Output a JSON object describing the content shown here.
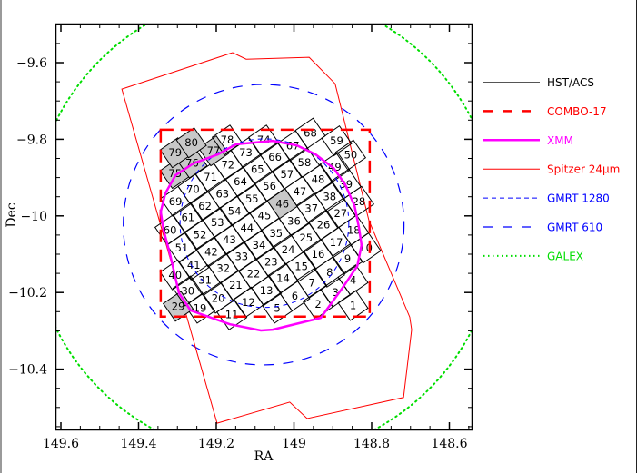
{
  "chart_data": {
    "type": "scatter",
    "title": "",
    "xlabel": "RA",
    "ylabel": "Dec",
    "xlim": [
      149.612,
      148.539
    ],
    "ylim": [
      -9.5,
      -10.558
    ],
    "grid": false,
    "legend_placement": "right-outside",
    "x_ticks": [
      149.6,
      149.4,
      149.2,
      149,
      148.8,
      148.6
    ],
    "x_tick_labels": [
      "149.6",
      "149.4",
      "149.2",
      "149",
      "148.8",
      "148.6"
    ],
    "y_ticks": [
      -9.6,
      -9.8,
      -10,
      -10.2,
      -10.4
    ],
    "y_tick_labels": [
      "−9.6",
      "−9.8",
      "−10",
      "−10.2",
      "−10.4"
    ],
    "legend": [
      {
        "label": "HST/ACS",
        "color": "#000000",
        "style": "solid"
      },
      {
        "label": "COMBO-17",
        "color": "#ff0000",
        "style": "long-dash"
      },
      {
        "label": "XMM",
        "color": "#ff00ff",
        "style": "thick-solid"
      },
      {
        "label": "Spitzer 24μm",
        "color": "#ff0000",
        "style": "solid"
      },
      {
        "label": "GMRT 1280",
        "color": "#0000ff",
        "style": "short-dash"
      },
      {
        "label": "GMRT 610",
        "color": "#0000ff",
        "style": "dash"
      },
      {
        "label": "GALEX",
        "color": "#00dd00",
        "style": "dotted"
      }
    ],
    "circles": [
      {
        "name": "GALEX",
        "center": [
          149.076,
          -10.023
        ],
        "radius_deg": 0.607
      },
      {
        "name": "GMRT 610",
        "center": [
          149.078,
          -10.023
        ],
        "radius_deg": 0.366
      },
      {
        "name": "GMRT 1280",
        "center": [
          149.076,
          -10.019
        ],
        "radius_deg": 0.22
      }
    ],
    "combo17_box": {
      "ra": [
        149.343,
        148.805
      ],
      "dec": [
        -9.775,
        -10.263
      ]
    },
    "spitzer_polygon": [
      [
        149.443,
        -9.669
      ],
      [
        149.158,
        -9.574
      ],
      [
        149.123,
        -9.591
      ],
      [
        148.961,
        -9.586
      ],
      [
        148.894,
        -9.655
      ],
      [
        148.807,
        -10.012
      ],
      [
        148.702,
        -10.264
      ],
      [
        148.697,
        -10.297
      ],
      [
        148.718,
        -10.474
      ],
      [
        148.966,
        -10.529
      ],
      [
        149.011,
        -10.486
      ],
      [
        149.198,
        -10.541
      ]
    ],
    "xmm_polygon": [
      [
        149.195,
        -9.839
      ],
      [
        149.149,
        -9.813
      ],
      [
        149.055,
        -9.804
      ],
      [
        148.992,
        -9.816
      ],
      [
        148.945,
        -9.839
      ],
      [
        148.898,
        -9.875
      ],
      [
        148.868,
        -9.918
      ],
      [
        148.844,
        -9.974
      ],
      [
        148.833,
        -10.029
      ],
      [
        148.826,
        -10.076
      ],
      [
        148.837,
        -10.131
      ],
      [
        148.875,
        -10.188
      ],
      [
        148.931,
        -10.266
      ],
      [
        149.055,
        -10.297
      ],
      [
        149.085,
        -10.299
      ],
      [
        149.165,
        -10.283
      ],
      [
        149.266,
        -10.247
      ],
      [
        149.296,
        -10.202
      ],
      [
        149.319,
        -10.1
      ],
      [
        149.336,
        -10.036
      ],
      [
        149.343,
        -9.989
      ],
      [
        149.331,
        -9.941
      ],
      [
        149.305,
        -9.894
      ],
      [
        149.259,
        -9.863
      ]
    ],
    "tile_size_deg": 0.056,
    "tiles": [
      {
        "id": 1,
        "ra": 148.848,
        "dec": -10.234
      },
      {
        "id": 2,
        "ra": 148.938,
        "dec": -10.23
      },
      {
        "id": 3,
        "ra": 148.893,
        "dec": -10.199
      },
      {
        "id": 4,
        "ra": 148.848,
        "dec": -10.167
      },
      {
        "id": 5,
        "ra": 149.043,
        "dec": -10.241
      },
      {
        "id": 6,
        "ra": 148.998,
        "dec": -10.209
      },
      {
        "id": 7,
        "ra": 148.954,
        "dec": -10.175
      },
      {
        "id": 8,
        "ra": 148.908,
        "dec": -10.147
      },
      {
        "id": 9,
        "ra": 148.862,
        "dec": -10.112
      },
      {
        "id": 10,
        "ra": 148.815,
        "dec": -10.084
      },
      {
        "id": 11,
        "ra": 149.16,
        "dec": -10.258
      },
      {
        "id": 12,
        "ra": 149.117,
        "dec": -10.225
      },
      {
        "id": 13,
        "ra": 149.071,
        "dec": -10.195
      },
      {
        "id": 14,
        "ra": 149.028,
        "dec": -10.163
      },
      {
        "id": 15,
        "ra": 148.981,
        "dec": -10.132
      },
      {
        "id": 16,
        "ra": 148.938,
        "dec": -10.1
      },
      {
        "id": 17,
        "ra": 148.891,
        "dec": -10.069
      },
      {
        "id": 18,
        "ra": 148.846,
        "dec": -10.037
      },
      {
        "id": 19,
        "ra": 149.242,
        "dec": -10.241
      },
      {
        "id": 20,
        "ra": 149.195,
        "dec": -10.215
      },
      {
        "id": 21,
        "ra": 149.15,
        "dec": -10.181
      },
      {
        "id": 22,
        "ra": 149.104,
        "dec": -10.151
      },
      {
        "id": 23,
        "ra": 149.059,
        "dec": -10.12
      },
      {
        "id": 24,
        "ra": 149.015,
        "dec": -10.088
      },
      {
        "id": 25,
        "ra": 148.969,
        "dec": -10.057
      },
      {
        "id": 26,
        "ra": 148.924,
        "dec": -10.023
      },
      {
        "id": 27,
        "ra": 148.88,
        "dec": -9.993
      },
      {
        "id": 28,
        "ra": 148.833,
        "dec": -9.962
      },
      {
        "id": 29,
        "ra": 149.298,
        "dec": -10.236,
        "shaded": true
      },
      {
        "id": 30,
        "ra": 149.273,
        "dec": -10.196
      },
      {
        "id": 31,
        "ra": 149.229,
        "dec": -10.167
      },
      {
        "id": 32,
        "ra": 149.182,
        "dec": -10.137
      },
      {
        "id": 33,
        "ra": 149.135,
        "dec": -10.106
      },
      {
        "id": 34,
        "ra": 149.09,
        "dec": -10.076
      },
      {
        "id": 35,
        "ra": 149.046,
        "dec": -10.045
      },
      {
        "id": 36,
        "ra": 149.0,
        "dec": -10.013
      },
      {
        "id": 37,
        "ra": 148.955,
        "dec": -9.98
      },
      {
        "id": 38,
        "ra": 148.908,
        "dec": -9.95
      },
      {
        "id": 39,
        "ra": 148.866,
        "dec": -9.917
      },
      {
        "id": 40,
        "ra": 149.306,
        "dec": -10.154
      },
      {
        "id": 41,
        "ra": 149.258,
        "dec": -10.128
      },
      {
        "id": 42,
        "ra": 149.213,
        "dec": -10.094
      },
      {
        "id": 43,
        "ra": 149.166,
        "dec": -10.062
      },
      {
        "id": 44,
        "ra": 149.121,
        "dec": -10.031
      },
      {
        "id": 45,
        "ra": 149.076,
        "dec": -9.999
      },
      {
        "id": 46,
        "ra": 149.03,
        "dec": -9.968,
        "shaded": true
      },
      {
        "id": 47,
        "ra": 148.985,
        "dec": -9.936
      },
      {
        "id": 48,
        "ra": 148.938,
        "dec": -9.905
      },
      {
        "id": 49,
        "ra": 148.895,
        "dec": -9.873
      },
      {
        "id": 50,
        "ra": 148.854,
        "dec": -9.841
      },
      {
        "id": 51,
        "ra": 149.289,
        "dec": -10.083
      },
      {
        "id": 52,
        "ra": 149.242,
        "dec": -10.049
      },
      {
        "id": 53,
        "ra": 149.197,
        "dec": -10.017
      },
      {
        "id": 54,
        "ra": 149.153,
        "dec": -9.987
      },
      {
        "id": 55,
        "ra": 149.108,
        "dec": -9.956
      },
      {
        "id": 56,
        "ra": 149.063,
        "dec": -9.922
      },
      {
        "id": 57,
        "ra": 149.018,
        "dec": -9.891
      },
      {
        "id": 58,
        "ra": 148.973,
        "dec": -9.861
      },
      {
        "id": 59,
        "ra": 148.89,
        "dec": -9.804
      },
      {
        "id": 60,
        "ra": 149.319,
        "dec": -10.037
      },
      {
        "id": 61,
        "ra": 149.273,
        "dec": -10.004
      },
      {
        "id": 62,
        "ra": 149.229,
        "dec": -9.974
      },
      {
        "id": 63,
        "ra": 149.184,
        "dec": -9.942
      },
      {
        "id": 64,
        "ra": 149.138,
        "dec": -9.911
      },
      {
        "id": 65,
        "ra": 149.094,
        "dec": -9.879
      },
      {
        "id": 66,
        "ra": 149.049,
        "dec": -9.847
      },
      {
        "id": 67,
        "ra": 149.003,
        "dec": -9.817
      },
      {
        "id": 68,
        "ra": 148.958,
        "dec": -9.784
      },
      {
        "id": 69,
        "ra": 149.305,
        "dec": -9.962
      },
      {
        "id": 70,
        "ra": 149.26,
        "dec": -9.93
      },
      {
        "id": 71,
        "ra": 149.215,
        "dec": -9.899
      },
      {
        "id": 72,
        "ra": 149.17,
        "dec": -9.867
      },
      {
        "id": 73,
        "ra": 149.124,
        "dec": -9.835
      },
      {
        "id": 74,
        "ra": 149.078,
        "dec": -9.802
      },
      {
        "id": 75,
        "ra": 149.306,
        "dec": -9.889,
        "shaded": true
      },
      {
        "id": 76,
        "ra": 149.262,
        "dec": -9.862,
        "shaded": true
      },
      {
        "id": 77,
        "ra": 149.207,
        "dec": -9.83,
        "shaded": true
      },
      {
        "id": 78,
        "ra": 149.172,
        "dec": -9.802
      },
      {
        "id": 79,
        "ra": 149.306,
        "dec": -9.835,
        "shaded": true
      },
      {
        "id": 80,
        "ra": 149.264,
        "dec": -9.809,
        "shaded": true
      }
    ],
    "colors": {
      "tile_shade": "#c8c8c8",
      "combo": "#ff0000",
      "xmm": "#ff00ff",
      "spitzer": "#ff0000",
      "gmrt": "#0000ff",
      "galex": "#00dd00"
    }
  }
}
